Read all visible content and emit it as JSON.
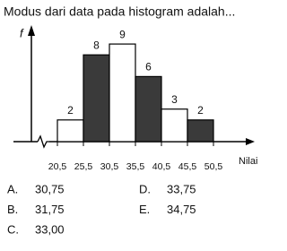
{
  "question": "Modus dari data pada histogram adalah...",
  "chart_data": {
    "type": "histogram",
    "ylabel": "f",
    "xlabel": "Nilai",
    "bins": [
      20.5,
      25.5,
      30.5,
      35.5,
      40.5,
      45.5,
      50.5
    ],
    "values": [
      2,
      8,
      9,
      6,
      3,
      2
    ],
    "colors": [
      "#ffffff",
      "#3a3a3a",
      "#ffffff",
      "#3a3a3a",
      "#ffffff",
      "#3a3a3a"
    ],
    "ylim": [
      0,
      10
    ],
    "xticks": [
      {
        "value": 20.5,
        "label": "20,5"
      },
      {
        "value": 25.5,
        "label": "25,5"
      },
      {
        "value": 30.5,
        "label": "30,5"
      },
      {
        "value": 35.5,
        "label": "35,5"
      },
      {
        "value": 40.5,
        "label": "40,5"
      },
      {
        "value": 45.5,
        "label": "45,5"
      },
      {
        "value": 50.5,
        "label": "50,5"
      }
    ]
  },
  "options": [
    {
      "letter": "A.",
      "text": "30,75"
    },
    {
      "letter": "B.",
      "text": "31,75"
    },
    {
      "letter": "C.",
      "text": "33,00"
    },
    {
      "letter": "D.",
      "text": "33,75"
    },
    {
      "letter": "E.",
      "text": "34,75"
    }
  ]
}
